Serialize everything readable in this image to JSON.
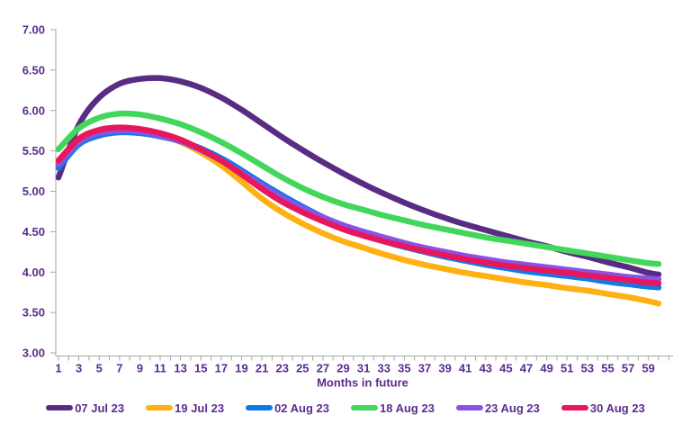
{
  "style": {
    "background": "#FFFFFF",
    "text_color": "#5B2C8F",
    "axis_color": "#A6A6A6"
  },
  "chart_data": {
    "type": "line",
    "title": "",
    "xlabel": "Months in future",
    "ylabel": "",
    "ylim": [
      3.0,
      7.0
    ],
    "y_tick_labels": [
      "3.00",
      "3.50",
      "4.00",
      "4.50",
      "5.00",
      "5.50",
      "6.00",
      "6.50",
      "7.00"
    ],
    "x_tick_labels": [
      1,
      3,
      5,
      7,
      9,
      11,
      13,
      15,
      17,
      19,
      21,
      23,
      25,
      27,
      29,
      31,
      33,
      35,
      37,
      39,
      41,
      43,
      45,
      47,
      49,
      51,
      53,
      55,
      57,
      59
    ],
    "grid": false,
    "legend_position": "bottom",
    "x": [
      1,
      3,
      5,
      7,
      9,
      11,
      13,
      15,
      17,
      19,
      21,
      23,
      25,
      27,
      29,
      31,
      33,
      35,
      37,
      39,
      41,
      43,
      45,
      47,
      49,
      51,
      53,
      55,
      57,
      59,
      60
    ],
    "series": [
      {
        "name": "07 Jul 23",
        "color": "#582C83",
        "values": [
          5.17,
          5.82,
          6.16,
          6.33,
          6.39,
          6.4,
          6.36,
          6.28,
          6.16,
          6.01,
          5.84,
          5.67,
          5.51,
          5.36,
          5.22,
          5.09,
          4.97,
          4.86,
          4.76,
          4.67,
          4.59,
          4.52,
          4.45,
          4.38,
          4.32,
          4.25,
          4.19,
          4.12,
          4.06,
          3.99,
          3.97
        ]
      },
      {
        "name": "19 Jul 23",
        "color": "#FFB012",
        "values": [
          5.35,
          5.63,
          5.73,
          5.77,
          5.75,
          5.7,
          5.61,
          5.48,
          5.32,
          5.12,
          4.91,
          4.74,
          4.6,
          4.48,
          4.38,
          4.3,
          4.22,
          4.15,
          4.09,
          4.04,
          3.99,
          3.95,
          3.91,
          3.87,
          3.84,
          3.8,
          3.77,
          3.73,
          3.69,
          3.64,
          3.61
        ]
      },
      {
        "name": "02 Aug 23",
        "color": "#0E7AE6",
        "values": [
          5.29,
          5.58,
          5.69,
          5.73,
          5.72,
          5.68,
          5.62,
          5.53,
          5.41,
          5.26,
          5.1,
          4.95,
          4.81,
          4.68,
          4.56,
          4.46,
          4.38,
          4.31,
          4.25,
          4.19,
          4.14,
          4.09,
          4.05,
          4.01,
          3.98,
          3.95,
          3.92,
          3.88,
          3.85,
          3.82,
          3.81
        ]
      },
      {
        "name": "18 Aug 23",
        "color": "#42D65A",
        "values": [
          5.52,
          5.78,
          5.91,
          5.96,
          5.95,
          5.9,
          5.83,
          5.73,
          5.61,
          5.47,
          5.32,
          5.17,
          5.04,
          4.93,
          4.84,
          4.77,
          4.7,
          4.64,
          4.58,
          4.53,
          4.48,
          4.43,
          4.39,
          4.35,
          4.31,
          4.27,
          4.23,
          4.19,
          4.15,
          4.11,
          4.1
        ]
      },
      {
        "name": "23 Aug 23",
        "color": "#8A52E5",
        "values": [
          5.33,
          5.61,
          5.72,
          5.75,
          5.74,
          5.69,
          5.62,
          5.51,
          5.38,
          5.23,
          5.07,
          4.92,
          4.79,
          4.68,
          4.58,
          4.5,
          4.43,
          4.36,
          4.3,
          4.25,
          4.2,
          4.16,
          4.12,
          4.09,
          4.06,
          4.03,
          4.0,
          3.97,
          3.94,
          3.92,
          3.91
        ]
      },
      {
        "name": "30 Aug 23",
        "color": "#E8175C",
        "values": [
          5.38,
          5.65,
          5.76,
          5.79,
          5.77,
          5.72,
          5.64,
          5.52,
          5.38,
          5.21,
          5.03,
          4.87,
          4.74,
          4.63,
          4.53,
          4.45,
          4.38,
          4.32,
          4.26,
          4.21,
          4.16,
          4.12,
          4.08,
          4.05,
          4.02,
          3.99,
          3.96,
          3.93,
          3.9,
          3.87,
          3.86
        ]
      }
    ]
  }
}
